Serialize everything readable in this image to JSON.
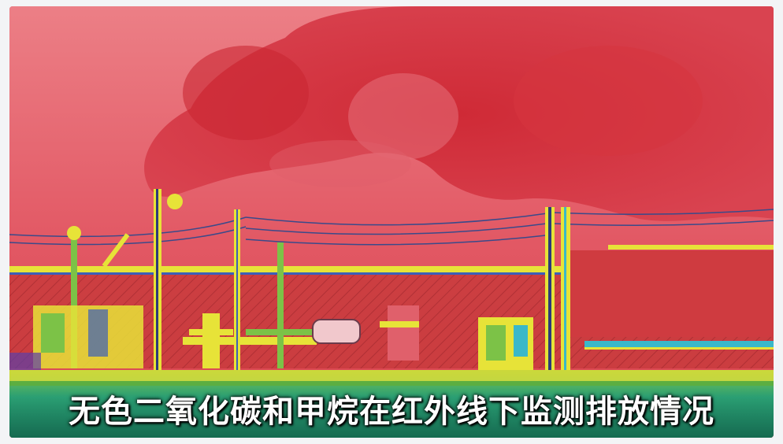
{
  "caption": {
    "text": "无色二氧化碳和甲烷在红外线下监测排放情况"
  },
  "colors": {
    "sky": "#e0525f",
    "smoke": "#d2303d",
    "fence": "#c93a3a",
    "pipe_yellow": "#e6e23a",
    "pipe_green": "#7cc247",
    "ground_teal": "#1fa98a"
  }
}
